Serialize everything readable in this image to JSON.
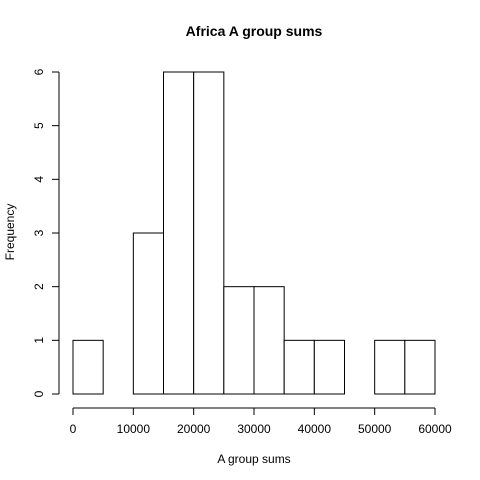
{
  "chart_data": {
    "type": "bar",
    "title": "Africa A group sums",
    "xlabel": "A group sums",
    "ylabel": "Frequency",
    "bins": [
      {
        "start": 0,
        "end": 5000,
        "count": 1
      },
      {
        "start": 5000,
        "end": 10000,
        "count": 0
      },
      {
        "start": 10000,
        "end": 15000,
        "count": 3
      },
      {
        "start": 15000,
        "end": 20000,
        "count": 6
      },
      {
        "start": 20000,
        "end": 25000,
        "count": 6
      },
      {
        "start": 25000,
        "end": 30000,
        "count": 2
      },
      {
        "start": 30000,
        "end": 35000,
        "count": 2
      },
      {
        "start": 35000,
        "end": 40000,
        "count": 1
      },
      {
        "start": 40000,
        "end": 45000,
        "count": 1
      },
      {
        "start": 45000,
        "end": 50000,
        "count": 0
      },
      {
        "start": 50000,
        "end": 55000,
        "count": 1
      },
      {
        "start": 55000,
        "end": 60000,
        "count": 1
      }
    ],
    "xlim": [
      0,
      60000
    ],
    "ylim": [
      0,
      6
    ],
    "xticks": [
      0,
      10000,
      20000,
      30000,
      40000,
      50000,
      60000
    ],
    "yticks": [
      0,
      1,
      2,
      3,
      4,
      5,
      6
    ],
    "grid": false
  }
}
